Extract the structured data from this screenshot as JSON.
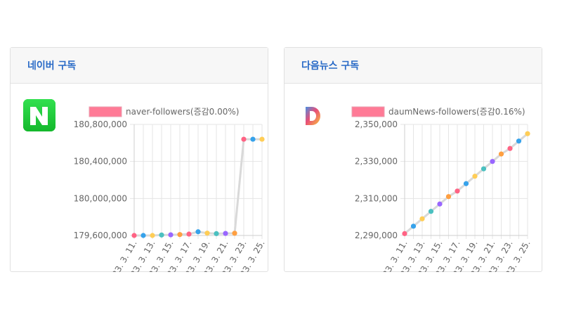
{
  "cards": [
    {
      "title": "네이버 구독",
      "logo": {
        "icon": "naver-logo-icon",
        "letter": "N",
        "color": "#19ce3b"
      },
      "chart_data": {
        "type": "line",
        "legend": "naver-followers(증감0.00%)",
        "series_color": "#ff6384",
        "x": [
          "2023. 3. 11.",
          "2023. 3. 12.",
          "2023. 3. 13.",
          "2023. 3. 14.",
          "2023. 3. 15.",
          "2023. 3. 16.",
          "2023. 3. 17.",
          "2023. 3. 18.",
          "2023. 3. 19.",
          "2023. 3. 20.",
          "2023. 3. 21.",
          "2023. 3. 22.",
          "2023. 3. 23.",
          "2023. 3. 24.",
          "2023. 3. 25."
        ],
        "x_tick_labels": [
          "2023. 3. 11.",
          "2023. 3. 13.",
          "2023. 3. 15.",
          "2023. 3. 17.",
          "2023. 3. 19.",
          "2023. 3. 21.",
          "2023. 3. 23.",
          "2023. 3. 25."
        ],
        "values": [
          179600000,
          179600000,
          179600000,
          179605000,
          179607000,
          179610000,
          179615000,
          179640000,
          179625000,
          179620000,
          179622000,
          179624000,
          180640000,
          180640000,
          180640000
        ],
        "point_colors": [
          "#ff6384",
          "#36a2eb",
          "#ffcd56",
          "#4bc0c0",
          "#9966ff",
          "#ff9f40",
          "#ff6384",
          "#36a2eb",
          "#ffcd56",
          "#4bc0c0",
          "#9966ff",
          "#ff9f40",
          "#ff6384",
          "#36a2eb",
          "#ffcd56"
        ],
        "y_ticks": [
          "179,600,000",
          "180,000,000",
          "180,400,000",
          "180,800,000"
        ],
        "ylim": [
          179600000,
          180800000
        ],
        "grid": true,
        "legend_position": "top"
      }
    },
    {
      "title": "다음뉴스 구독",
      "logo": {
        "icon": "daum-logo-icon",
        "letter": "D",
        "color": "#f5a623"
      },
      "chart_data": {
        "type": "line",
        "legend": "daumNews-followers(증감0.16%)",
        "series_color": "#ff6384",
        "x": [
          "2023. 3. 11.",
          "2023. 3. 12.",
          "2023. 3. 13.",
          "2023. 3. 14.",
          "2023. 3. 15.",
          "2023. 3. 16.",
          "2023. 3. 17.",
          "2023. 3. 18.",
          "2023. 3. 19.",
          "2023. 3. 20.",
          "2023. 3. 21.",
          "2023. 3. 22.",
          "2023. 3. 23.",
          "2023. 3. 24.",
          "2023. 3. 25."
        ],
        "x_tick_labels": [
          "2023. 3. 11.",
          "2023. 3. 13.",
          "2023. 3. 15.",
          "2023. 3. 17.",
          "2023. 3. 19.",
          "2023. 3. 21.",
          "2023. 3. 23.",
          "2023. 3. 25."
        ],
        "values": [
          2291000,
          2295000,
          2299000,
          2303000,
          2307000,
          2311000,
          2314000,
          2318000,
          2322000,
          2326000,
          2330000,
          2334000,
          2337000,
          2341000,
          2345000
        ],
        "point_colors": [
          "#ff6384",
          "#36a2eb",
          "#ffcd56",
          "#4bc0c0",
          "#9966ff",
          "#ff9f40",
          "#ff6384",
          "#36a2eb",
          "#ffcd56",
          "#4bc0c0",
          "#9966ff",
          "#ff9f40",
          "#ff6384",
          "#36a2eb",
          "#ffcd56"
        ],
        "y_ticks": [
          "2,290,000",
          "2,310,000",
          "2,330,000",
          "2,350,000"
        ],
        "ylim": [
          2290000,
          2350000
        ],
        "grid": true,
        "legend_position": "top"
      }
    }
  ]
}
